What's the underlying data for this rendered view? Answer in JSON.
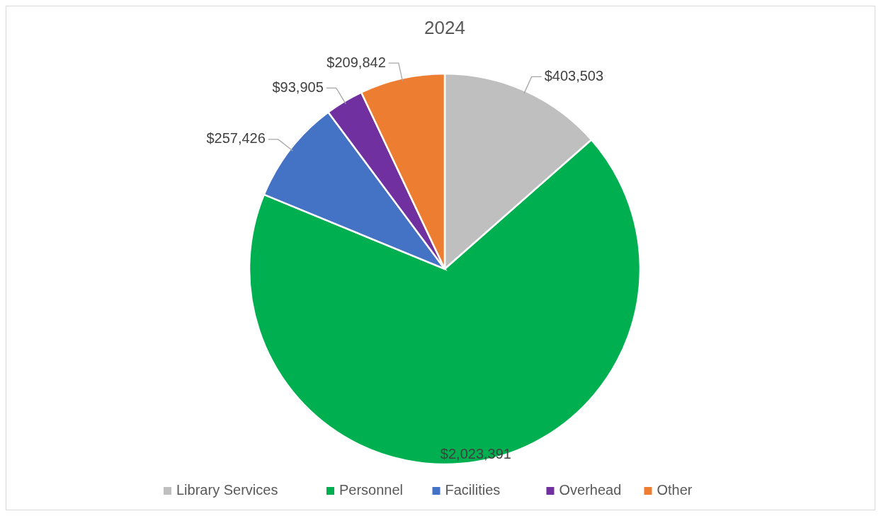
{
  "chart_data": {
    "type": "pie",
    "title": "2024",
    "categories": [
      "Library Services",
      "Personnel",
      "Facilities",
      "Overhead",
      "Other"
    ],
    "values": [
      403503,
      2023391,
      257426,
      93905,
      209842
    ],
    "value_labels": [
      "$403,503",
      "$2,023,391",
      "$257,426",
      "$93,905",
      "$209,842"
    ],
    "colors": [
      "#bfbfbf",
      "#00b050",
      "#4472c4",
      "#7030a0",
      "#ed7d31"
    ],
    "legend": "bottom"
  }
}
